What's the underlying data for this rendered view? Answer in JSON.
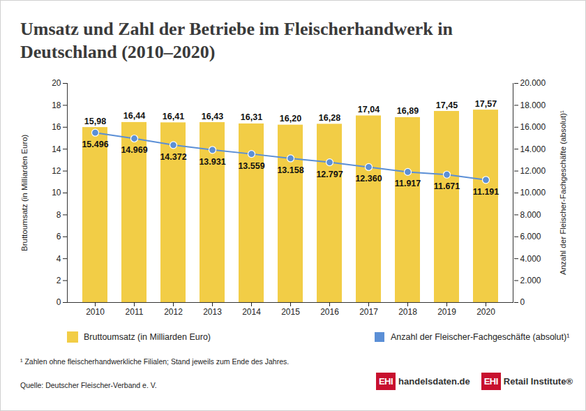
{
  "chart_data": {
    "type": "bar",
    "title": "Umsatz und Zahl der Betriebe im Fleischerhandwerk in Deutschland (2010–2020)",
    "categories": [
      "2010",
      "2011",
      "2012",
      "2013",
      "2014",
      "2015",
      "2016",
      "2017",
      "2018",
      "2019",
      "2020"
    ],
    "ylabel": "Bruttoumsatz (in Milliarden Euro)",
    "y2label": "Anzahl der Fleischer-Fachgeschäfte (absolut)¹",
    "ylim": [
      0,
      20
    ],
    "yticks": [
      0,
      2,
      4,
      6,
      8,
      10,
      12,
      14,
      16,
      18,
      20
    ],
    "y2lim": [
      0,
      20000
    ],
    "y2ticks": [
      0,
      {
        "value": 2000,
        "label": "2.000"
      },
      {
        "value": 4000,
        "label": "4.000"
      },
      {
        "value": 6000,
        "label": "6.000"
      },
      {
        "value": 8000,
        "label": "8.000"
      },
      {
        "value": 10000,
        "label": "10.000"
      },
      {
        "value": 12000,
        "label": "12.000"
      },
      {
        "value": 14000,
        "label": "14.000"
      },
      {
        "value": 16000,
        "label": "16.000"
      },
      {
        "value": 18000,
        "label": "18.000"
      },
      {
        "value": 20000,
        "label": "20.000"
      }
    ],
    "grid": false,
    "data_labels": true,
    "legend": "bottom",
    "series": [
      {
        "name": "Bruttoumsatz (in Milliarden Euro)",
        "type": "bar",
        "color": "#f2cd46",
        "values": [
          15.98,
          16.44,
          16.41,
          16.43,
          16.31,
          16.2,
          16.28,
          17.04,
          16.89,
          17.45,
          17.57
        ],
        "value_labels": [
          "15,98",
          "16,44",
          "16,41",
          "16,43",
          "16,31",
          "16,20",
          "16,28",
          "17,04",
          "16,89",
          "17,45",
          "17,57"
        ]
      },
      {
        "name": "Anzahl der Fleischer-Fachgeschäfte (absolut)¹",
        "type": "line",
        "axis": "y2",
        "color": "#5b8fd6",
        "marker": "circle",
        "values": [
          15496,
          14969,
          14372,
          13931,
          13559,
          13158,
          12797,
          12360,
          11917,
          11671,
          11191
        ],
        "value_labels": [
          "15.496",
          "14.969",
          "14.372",
          "13.931",
          "13.559",
          "13.158",
          "12.797",
          "12.360",
          "11.917",
          "11.671",
          "11.191"
        ]
      }
    ],
    "footnote": "¹ Zahlen ohne fleischerhandwerkliche Filialen; Stand jeweils zum Ende des Jahres.",
    "source": "Quelle: Deutscher Fleischer-Verband e. V.",
    "logos": [
      {
        "badge": "EHI",
        "text": "handelsdaten.de"
      },
      {
        "badge": "EHI",
        "text": "Retail Institute®"
      }
    ]
  }
}
